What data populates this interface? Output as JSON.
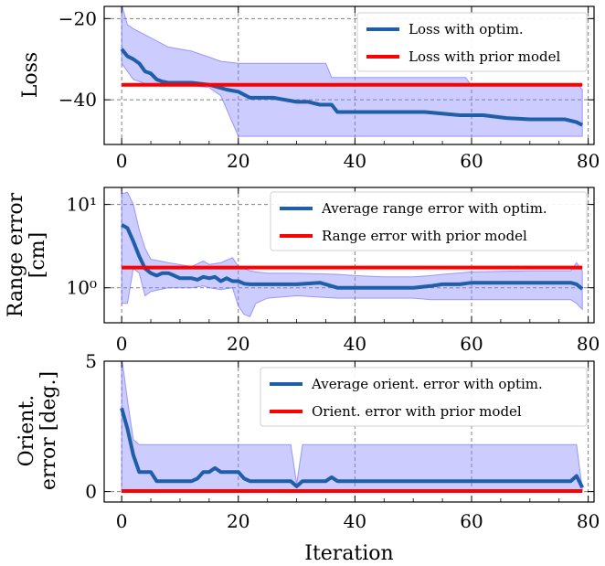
{
  "chart_data": [
    {
      "type": "line",
      "ylabel": "Loss",
      "xlim": [
        -3,
        81
      ],
      "ylim": [
        -51,
        -17
      ],
      "yticks": [
        {
          "v": -20,
          "label": "−20"
        },
        {
          "v": -40,
          "label": "−40"
        }
      ],
      "xticks": [
        {
          "v": 0,
          "label": "0"
        },
        {
          "v": 20,
          "label": "20"
        },
        {
          "v": 40,
          "label": "40"
        },
        {
          "v": 60,
          "label": "60"
        },
        {
          "v": 80,
          "label": "80"
        }
      ],
      "grid": true,
      "legend": "top-right",
      "series": [
        {
          "name": "Loss with optim.",
          "color": "#1f5ea8",
          "x": [
            0,
            1,
            2,
            3,
            4,
            5,
            6,
            7,
            8,
            9,
            12,
            15,
            18,
            20,
            22,
            26,
            30,
            32,
            34,
            36,
            37,
            40,
            45,
            52,
            58,
            62,
            66,
            70,
            76,
            78,
            79
          ],
          "y": [
            -27.5,
            -29.3,
            -30,
            -31,
            -33,
            -33.5,
            -35,
            -35.5,
            -35.8,
            -35.8,
            -35.8,
            -36.3,
            -37.5,
            -38,
            -39.5,
            -39.5,
            -40.5,
            -40.5,
            -41.2,
            -41.2,
            -43,
            -43,
            -43,
            -43,
            -43.8,
            -43.8,
            -44.5,
            -44.8,
            -44.8,
            -45.5,
            -46.2
          ]
        },
        {
          "name": "Loss with prior model",
          "color": "#ff0000",
          "x": [
            0,
            79
          ],
          "y": [
            -36.3,
            -36.3
          ]
        }
      ],
      "band": {
        "color": "#8080ff",
        "x": [
          0,
          1,
          2,
          4,
          8,
          12,
          15,
          17,
          20,
          21,
          25,
          30,
          35,
          36,
          37,
          45,
          55,
          59,
          60,
          70,
          77,
          78,
          79
        ],
        "upper": [
          -16.5,
          -21.5,
          -22.5,
          -24,
          -27,
          -28,
          -29.5,
          -30.5,
          -31,
          -31,
          -31,
          -31,
          -31,
          -34.5,
          -34.5,
          -34.5,
          -34.5,
          -34.5,
          -36.5,
          -36.5,
          -36.5,
          -36,
          -37.5
        ],
        "lower": [
          -31,
          -33,
          -35,
          -36,
          -36,
          -36.5,
          -37,
          -39,
          -49,
          -49,
          -49,
          -49,
          -49,
          -49,
          -49,
          -49,
          -49,
          -49,
          -49,
          -49,
          -49,
          -49,
          -49
        ]
      }
    },
    {
      "type": "line",
      "yscale": "log",
      "ylabel_lines": [
        "Range error",
        "[cm]"
      ],
      "xlim": [
        -3,
        81
      ],
      "ylim": [
        0.38,
        16
      ],
      "yticks": [
        {
          "v": 10,
          "label": "10¹"
        },
        {
          "v": 1,
          "label": "10⁰"
        }
      ],
      "xticks": [
        {
          "v": 0,
          "label": "0"
        },
        {
          "v": 20,
          "label": "20"
        },
        {
          "v": 40,
          "label": "40"
        },
        {
          "v": 60,
          "label": "60"
        },
        {
          "v": 80,
          "label": "80"
        }
      ],
      "grid": true,
      "legend": "top-right",
      "series": [
        {
          "name": "Average range error with optim.",
          "color": "#1f5ea8",
          "x": [
            0,
            1,
            2,
            3,
            4,
            5,
            6,
            7,
            8,
            9,
            10,
            12,
            13,
            14,
            15,
            16,
            17,
            18,
            19,
            20,
            21,
            22,
            26,
            30,
            34,
            37,
            40,
            45,
            50,
            53,
            55,
            58,
            60,
            65,
            70,
            77,
            78,
            79
          ],
          "y": [
            5.7,
            5.2,
            3.6,
            2.4,
            1.7,
            1.5,
            1.4,
            1.5,
            1.5,
            1.4,
            1.3,
            1.3,
            1.25,
            1.35,
            1.3,
            1.35,
            1.2,
            1.3,
            1.2,
            1.2,
            1.12,
            1.1,
            1.1,
            1.1,
            1.15,
            1.0,
            1.0,
            1.0,
            1.0,
            1.05,
            1.1,
            1.1,
            1.15,
            1.15,
            1.15,
            1.15,
            1.1,
            0.97
          ]
        },
        {
          "name": "Range error with prior model",
          "color": "#ff0000",
          "x": [
            0,
            79
          ],
          "y": [
            1.75,
            1.75
          ]
        }
      ],
      "band": {
        "color": "#8080ff",
        "x": [
          0,
          1,
          2,
          3,
          4,
          5,
          8,
          12,
          14,
          15,
          17,
          19,
          20,
          21,
          22,
          23,
          25,
          30,
          37,
          40,
          45,
          50,
          53,
          55,
          60,
          70,
          77,
          78,
          79
        ],
        "upper": [
          13.5,
          14,
          10,
          5,
          3,
          2.2,
          2,
          1.8,
          2.1,
          1.9,
          2.0,
          2.3,
          1.8,
          1.7,
          1.6,
          1.55,
          1.5,
          1.5,
          1.45,
          1.4,
          1.35,
          1.35,
          1.4,
          1.45,
          1.55,
          1.6,
          1.6,
          2.0,
          1.6
        ],
        "lower": [
          0.65,
          0.65,
          1.7,
          1.5,
          0.8,
          0.9,
          1.0,
          1.0,
          1.05,
          1.0,
          0.95,
          1.0,
          0.6,
          0.48,
          0.45,
          0.65,
          0.75,
          0.8,
          0.75,
          0.75,
          0.75,
          0.75,
          0.72,
          0.72,
          0.72,
          0.72,
          0.72,
          0.65,
          0.55
        ]
      }
    },
    {
      "type": "line",
      "ylabel_lines": [
        "Orient.",
        "error [deg.]"
      ],
      "xlim": [
        -3,
        81
      ],
      "ylim": [
        -0.4,
        5
      ],
      "yticks": [
        {
          "v": 0,
          "label": "0"
        },
        {
          "v": 5,
          "label": "5"
        }
      ],
      "xticks": [
        {
          "v": 0,
          "label": "0"
        },
        {
          "v": 20,
          "label": "20"
        },
        {
          "v": 40,
          "label": "40"
        },
        {
          "v": 60,
          "label": "60"
        },
        {
          "v": 80,
          "label": "80"
        }
      ],
      "xlabel": "Iteration",
      "grid": true,
      "legend": "top-right",
      "series": [
        {
          "name": "Average orient. error with optim.",
          "color": "#1f5ea8",
          "x": [
            0,
            1,
            2,
            3,
            4,
            5,
            6,
            7,
            8,
            10,
            12,
            13,
            14,
            15,
            16,
            17,
            18,
            19,
            20,
            21,
            22,
            25,
            29,
            30,
            31,
            33,
            35,
            36,
            37,
            40,
            45,
            50,
            60,
            70,
            77,
            78,
            79
          ],
          "y": [
            3.2,
            2.4,
            1.4,
            0.75,
            0.75,
            0.75,
            0.4,
            0.4,
            0.4,
            0.4,
            0.4,
            0.5,
            0.75,
            0.75,
            0.9,
            0.75,
            0.75,
            0.75,
            0.75,
            0.5,
            0.4,
            0.4,
            0.4,
            0.2,
            0.4,
            0.4,
            0.4,
            0.55,
            0.4,
            0.4,
            0.4,
            0.4,
            0.4,
            0.4,
            0.4,
            0.6,
            0.15
          ]
        },
        {
          "name": "Orient. error with prior model",
          "color": "#ff0000",
          "x": [
            0,
            79
          ],
          "y": [
            0.02,
            0.02
          ]
        }
      ],
      "band": {
        "color": "#8080ff",
        "x": [
          0,
          1,
          2,
          3,
          29,
          30,
          31,
          77,
          78,
          79
        ],
        "upper": [
          5.2,
          3.5,
          2.0,
          1.8,
          1.8,
          0.3,
          1.8,
          1.8,
          1.8,
          0.1
        ],
        "lower": [
          0.0,
          0.0,
          0.0,
          0.0,
          0.0,
          0.0,
          0.0,
          0.0,
          0.0,
          0.0
        ]
      }
    }
  ]
}
